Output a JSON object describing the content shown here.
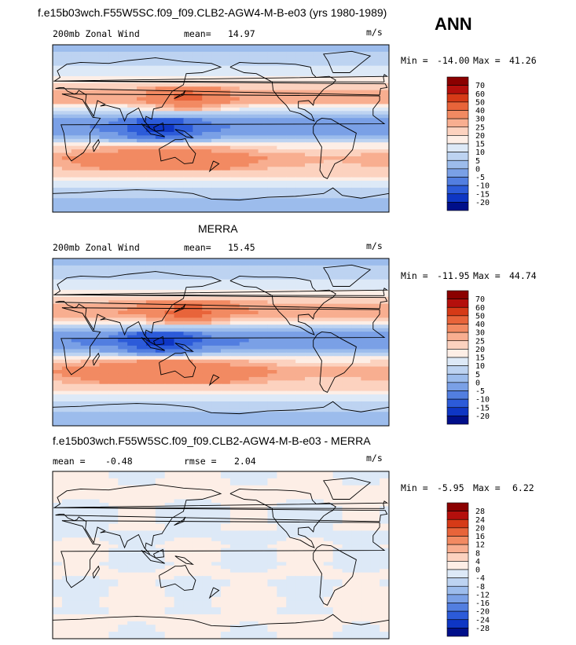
{
  "header": {
    "title": "f.e15b03wch.F55W5SC.f09_f09.CLB2-AGW4-M-B-e03 (yrs 1980-1989)",
    "season": "ANN"
  },
  "panels": [
    {
      "title": "",
      "left_label": "200mb Zonal Wind",
      "stat1_label": "mean=",
      "stat1_value": "14.97",
      "stat2_label": "",
      "stat2_value": "",
      "units": "m/s",
      "min_label": "Min =",
      "min_value": "-14.00",
      "max_label": "Max =",
      "max_value": "41.26"
    },
    {
      "title": "MERRA",
      "left_label": "200mb Zonal Wind",
      "stat1_label": "mean=",
      "stat1_value": "15.45",
      "stat2_label": "",
      "stat2_value": "",
      "units": "m/s",
      "min_label": "Min =",
      "min_value": "-11.95",
      "max_label": "Max =",
      "max_value": "44.74"
    },
    {
      "title": "f.e15b03wch.F55W5SC.f09_f09.CLB2-AGW4-M-B-e03 - MERRA",
      "left_label": "mean =",
      "stat1_label": "",
      "stat1_value": "-0.48",
      "stat2_label": "rmse =",
      "stat2_value": "2.04",
      "units": "m/s",
      "min_label": "Min =",
      "min_value": "-5.95",
      "max_label": "Max =",
      "max_value": "6.22"
    }
  ],
  "colorbars": [
    {
      "labels": [
        "70",
        "60",
        "50",
        "40",
        "30",
        "25",
        "20",
        "15",
        "10",
        "5",
        "0",
        "-5",
        "-10",
        "-15",
        "-20"
      ],
      "colors": [
        "#8b0000",
        "#b40f0c",
        "#d63a17",
        "#e8643a",
        "#f28a62",
        "#f8ae90",
        "#fcd2bf",
        "#fdeee6",
        "#dde9f7",
        "#bdd3f1",
        "#9cbcec",
        "#7aa0e6",
        "#527ee0",
        "#2c5bd9",
        "#0e36c4",
        "#000f8a"
      ]
    },
    {
      "labels": [
        "70",
        "60",
        "50",
        "40",
        "30",
        "25",
        "20",
        "15",
        "10",
        "5",
        "0",
        "-5",
        "-10",
        "-15",
        "-20"
      ],
      "colors": [
        "#8b0000",
        "#b40f0c",
        "#d63a17",
        "#e8643a",
        "#f28a62",
        "#f8ae90",
        "#fcd2bf",
        "#fdeee6",
        "#dde9f7",
        "#bdd3f1",
        "#9cbcec",
        "#7aa0e6",
        "#527ee0",
        "#2c5bd9",
        "#0e36c4",
        "#000f8a"
      ]
    },
    {
      "labels": [
        "28",
        "24",
        "20",
        "16",
        "12",
        "8",
        "4",
        "0",
        "-4",
        "-8",
        "-12",
        "-16",
        "-20",
        "-24",
        "-28"
      ],
      "colors": [
        "#8b0000",
        "#b40f0c",
        "#d63a17",
        "#e8643a",
        "#f28a62",
        "#f8ae90",
        "#fcd2bf",
        "#fdeee6",
        "#dde9f7",
        "#bdd3f1",
        "#9cbcec",
        "#7aa0e6",
        "#527ee0",
        "#2c5bd9",
        "#0e36c4",
        "#000f8a"
      ]
    }
  ],
  "chart_data": [
    {
      "type": "heatmap",
      "variable": "200mb Zonal Wind",
      "units": "m/s",
      "x_range_lon": [
        0,
        360
      ],
      "y_range_lat": [
        -90,
        90
      ],
      "latitude_profile": {
        "lat": [
          90,
          75,
          60,
          50,
          40,
          30,
          20,
          10,
          0,
          -10,
          -20,
          -30,
          -40,
          -50,
          -60,
          -75,
          -90
        ],
        "value": [
          0,
          8,
          12,
          18,
          26,
          28,
          12,
          0,
          -5,
          2,
          22,
          32,
          30,
          22,
          12,
          5,
          0
        ]
      },
      "mean": 14.97,
      "min": -14.0,
      "max": 41.26
    },
    {
      "type": "heatmap",
      "variable": "200mb Zonal Wind",
      "units": "m/s",
      "x_range_lon": [
        0,
        360
      ],
      "y_range_lat": [
        -90,
        90
      ],
      "latitude_profile": {
        "lat": [
          90,
          75,
          60,
          50,
          40,
          30,
          20,
          10,
          0,
          -10,
          -20,
          -30,
          -40,
          -50,
          -60,
          -75,
          -90
        ],
        "value": [
          0,
          8,
          12,
          18,
          28,
          30,
          14,
          0,
          -6,
          2,
          24,
          34,
          30,
          22,
          12,
          5,
          0
        ]
      },
      "mean": 15.45,
      "min": -11.95,
      "max": 44.74
    },
    {
      "type": "heatmap",
      "variable": "difference",
      "units": "m/s",
      "x_range_lon": [
        0,
        360
      ],
      "y_range_lat": [
        -90,
        90
      ],
      "latitude_profile": {
        "lat": [
          90,
          75,
          60,
          50,
          40,
          30,
          20,
          10,
          0,
          -10,
          -20,
          -30,
          -40,
          -50,
          -60,
          -75,
          -90
        ],
        "value": [
          0,
          1,
          1,
          -1,
          -1,
          0,
          -1,
          1,
          0,
          -1,
          1,
          -1,
          0,
          1,
          0,
          1,
          0
        ]
      },
      "mean": -0.48,
      "rmse": 2.04,
      "min": -5.95,
      "max": 6.22
    }
  ]
}
